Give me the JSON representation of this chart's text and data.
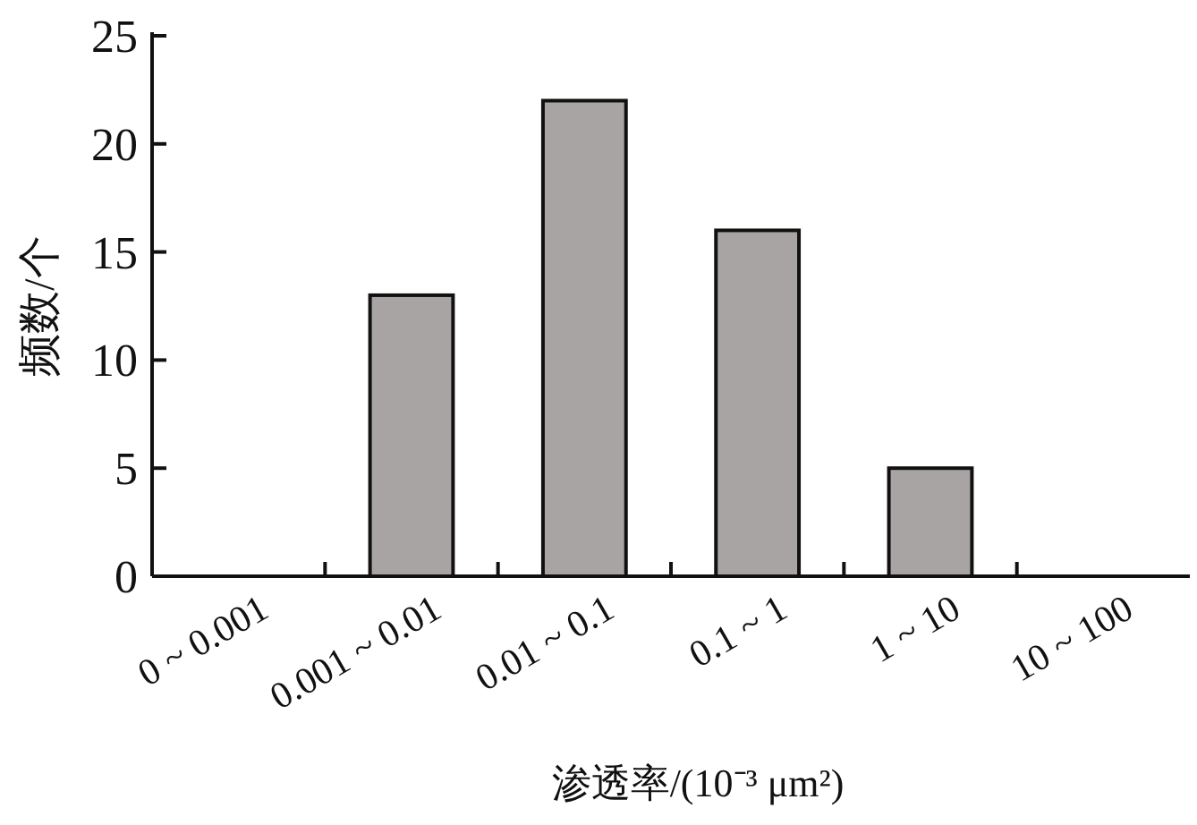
{
  "chart_data": {
    "type": "bar",
    "xlabel": "渗透率/(10⁻³ μm²)",
    "ylabel": "频数/个",
    "categories": [
      "0 ~ 0.001",
      "0.001 ~ 0.01",
      "0.01 ~ 0.1",
      "0.1 ~ 1",
      "1 ~ 10",
      "10 ~ 100"
    ],
    "values": [
      0,
      13,
      22,
      16,
      5,
      0
    ],
    "color": "#a9a4a4",
    "ylim": [
      0,
      25
    ],
    "yticks": [
      0,
      5,
      10,
      15,
      20,
      25
    ],
    "grid": false
  }
}
